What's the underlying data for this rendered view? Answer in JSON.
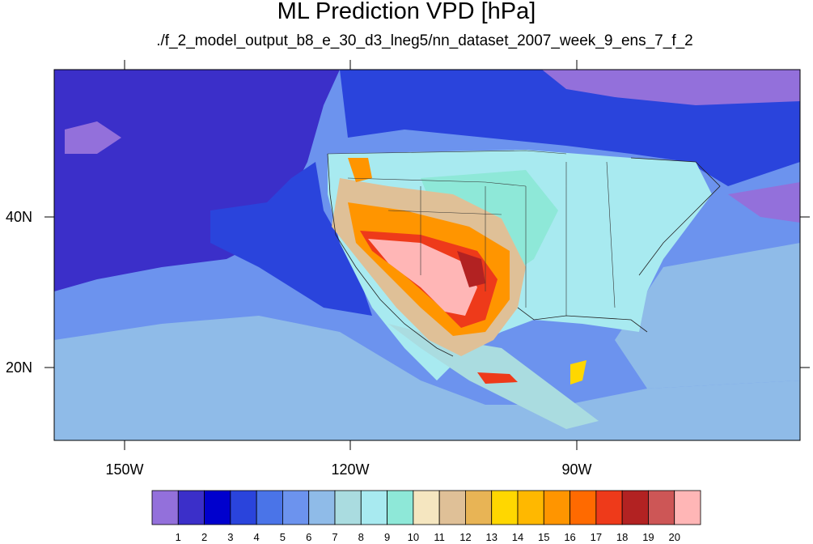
{
  "title": "ML Prediction VPD [hPa]",
  "subtitle": "./f_2_model_output_b8_e_30_d3_lneg5/nn_dataset_2007_week_9_ens_7_f_2",
  "axes": {
    "lat_labels": [
      "40N",
      "20N"
    ],
    "lon_labels": [
      "150W",
      "120W",
      "90W"
    ]
  },
  "colorbar": {
    "labels": [
      "1",
      "2",
      "3",
      "4",
      "5",
      "6",
      "7",
      "8",
      "9",
      "10",
      "11",
      "12",
      "13",
      "14",
      "15",
      "16",
      "17",
      "18",
      "19",
      "20"
    ],
    "colors": [
      "#9370db",
      "#3b2fc9",
      "#0000cd",
      "#2a44dc",
      "#4a74e8",
      "#6c93ee",
      "#8fbbe8",
      "#aadce0",
      "#a8eaf0",
      "#8ee8d8",
      "#f5e6c0",
      "#dfc097",
      "#e8b455",
      "#ffd700",
      "#ffb800",
      "#ff9500",
      "#ff6a00",
      "#ee3a1a",
      "#b22222",
      "#cd5656",
      "#ffb6b6"
    ]
  },
  "palette": {
    "ocean_dark": "#3b2fc9",
    "ocean_blue": "#2a44dc",
    "ocean_mid": "#6c93ee",
    "ocean_light": "#8fbbe8",
    "land_cyan": "#aadce0",
    "land_light": "#a8eaf0",
    "land_teal": "#8ee8d8",
    "pink": "#ffb6b6",
    "red": "#b22222",
    "orange": "#ff9500",
    "yellow": "#ffd700"
  }
}
